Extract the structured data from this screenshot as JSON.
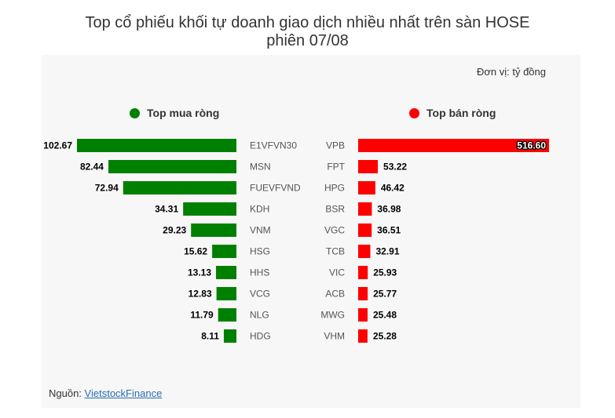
{
  "title_line1": "Top cổ phiếu khối tự doanh giao dịch nhiều nhất trên sàn HOSE",
  "title_line2": "phiên 07/08",
  "unit_label": "Đơn vị: tỷ đồng",
  "source_label": "Nguồn: ",
  "source_link": "VietstockFinance",
  "colors": {
    "buy": "#008000",
    "sell": "#ff0000"
  },
  "chart_data": [
    {
      "type": "bar",
      "orientation": "horizontal",
      "title": "Top mua ròng",
      "color": "#008000",
      "categories": [
        "E1VFVN30",
        "MSN",
        "FUEVFVND",
        "KDH",
        "VNM",
        "HSG",
        "HHS",
        "VCG",
        "NLG",
        "HDG"
      ],
      "values": [
        102.67,
        82.44,
        72.94,
        34.31,
        29.23,
        15.62,
        13.13,
        12.83,
        11.79,
        8.11
      ],
      "labels": [
        "102.67",
        "82.44",
        "72.94",
        "34.31",
        "29.23",
        "15.62",
        "13.13",
        "12.83",
        "11.79",
        "8.11"
      ]
    },
    {
      "type": "bar",
      "orientation": "horizontal",
      "title": "Top bán ròng",
      "color": "#ff0000",
      "categories": [
        "VPB",
        "FPT",
        "HPG",
        "BSR",
        "VGC",
        "TCB",
        "VIC",
        "ACB",
        "MWG",
        "VHM"
      ],
      "values": [
        516.6,
        53.22,
        46.42,
        36.98,
        36.51,
        32.91,
        25.93,
        25.77,
        25.48,
        25.28
      ],
      "labels": [
        "516.60",
        "53.22",
        "46.42",
        "36.98",
        "36.51",
        "32.91",
        "25.93",
        "25.77",
        "25.48",
        "25.28"
      ]
    }
  ]
}
